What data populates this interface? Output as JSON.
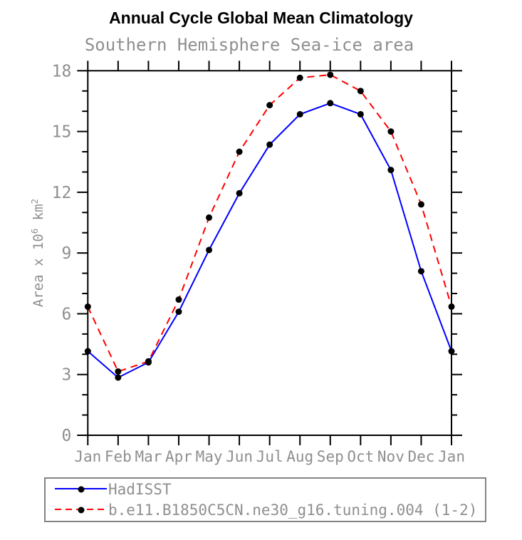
{
  "header": {
    "title": "Annual Cycle Global Mean Climatology",
    "subtitle": "Southern Hemisphere Sea-ice area"
  },
  "chart_data": {
    "type": "line",
    "categories": [
      "Jan",
      "Feb",
      "Mar",
      "Apr",
      "May",
      "Jun",
      "Jul",
      "Aug",
      "Sep",
      "Oct",
      "Nov",
      "Dec",
      "Jan"
    ],
    "series": [
      {
        "name": "HadISST",
        "color": "#0000ff",
        "line_style": "solid",
        "marker": "filled-circle",
        "marker_color": "#000000",
        "values": [
          4.15,
          2.85,
          3.6,
          6.1,
          9.15,
          11.95,
          14.35,
          15.85,
          16.4,
          15.85,
          13.1,
          8.1,
          4.15
        ]
      },
      {
        "name": "b.e11.B1850C5CN.ne30_g16.tuning.004 (1-2)",
        "color": "#ff0000",
        "line_style": "dashed",
        "marker": "filled-circle",
        "marker_color": "#000000",
        "values": [
          6.35,
          3.15,
          3.65,
          6.7,
          10.75,
          14.0,
          16.3,
          17.65,
          17.8,
          17.0,
          15.0,
          11.4,
          6.35
        ]
      }
    ],
    "ylabel": "Area x 10^6 km^2",
    "ylabel_parts": {
      "text1": "Area x 10",
      "sup1": "6",
      "text2": " km",
      "sup2": "2"
    },
    "xlabel": "",
    "ylim": [
      0,
      18
    ],
    "y_major_step": 3,
    "y_minor_step": 1,
    "y_tick_labels": [
      "0",
      "3",
      "6",
      "9",
      "12",
      "15",
      "18"
    ],
    "grid": "off",
    "legend_position": "bottom-left"
  },
  "style": {
    "axis_color": "#000000",
    "label_color": "#8f8f8f",
    "marker_color": "#000000"
  }
}
